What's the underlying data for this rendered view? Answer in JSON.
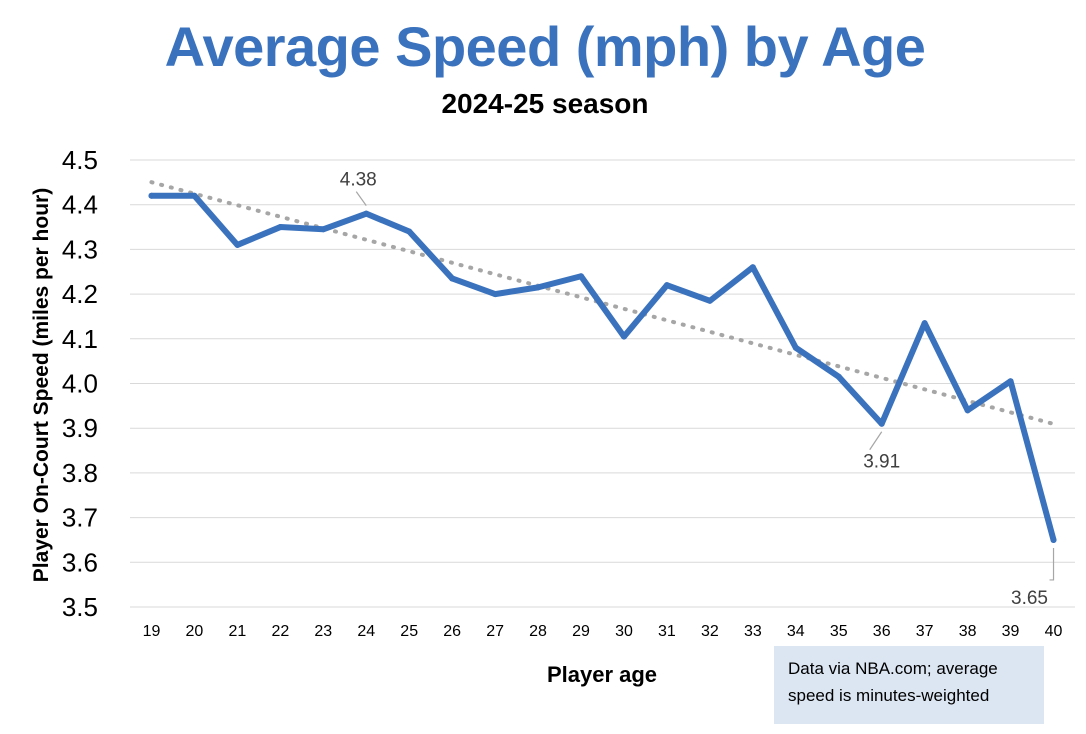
{
  "chart_data": {
    "type": "line",
    "title": "Average Speed (mph) by Age",
    "subtitle": "2024-25 season",
    "xlabel": "Player age",
    "ylabel": "Player On-Court Speed (miles per hour)",
    "ylim": [
      3.5,
      4.5
    ],
    "yticks": [
      "3.5",
      "3.6",
      "3.7",
      "3.8",
      "3.9",
      "4.0",
      "4.1",
      "4.2",
      "4.3",
      "4.4",
      "4.5"
    ],
    "categories": [
      "19",
      "20",
      "21",
      "22",
      "23",
      "24",
      "25",
      "26",
      "27",
      "28",
      "29",
      "30",
      "31",
      "32",
      "33",
      "34",
      "35",
      "36",
      "37",
      "38",
      "39",
      "40"
    ],
    "series": [
      {
        "values": [
          4.42,
          4.42,
          4.31,
          4.35,
          4.345,
          4.38,
          4.34,
          4.235,
          4.2,
          4.215,
          4.24,
          4.105,
          4.22,
          4.185,
          4.26,
          4.08,
          4.015,
          3.91,
          4.135,
          3.94,
          4.005,
          3.65
        ],
        "color": "#3a72be"
      }
    ],
    "trendline": {
      "type": "linear",
      "style": "dotted",
      "color": "#a6a6a6"
    },
    "annotations": [
      {
        "category": "24",
        "text": "4.38"
      },
      {
        "category": "36",
        "text": "3.91"
      },
      {
        "category": "40",
        "text": "3.65"
      }
    ],
    "grid": true,
    "legend": "none"
  },
  "note": {
    "line1": "Data via NBA.com;  average",
    "line2": "speed is minutes-weighted"
  }
}
